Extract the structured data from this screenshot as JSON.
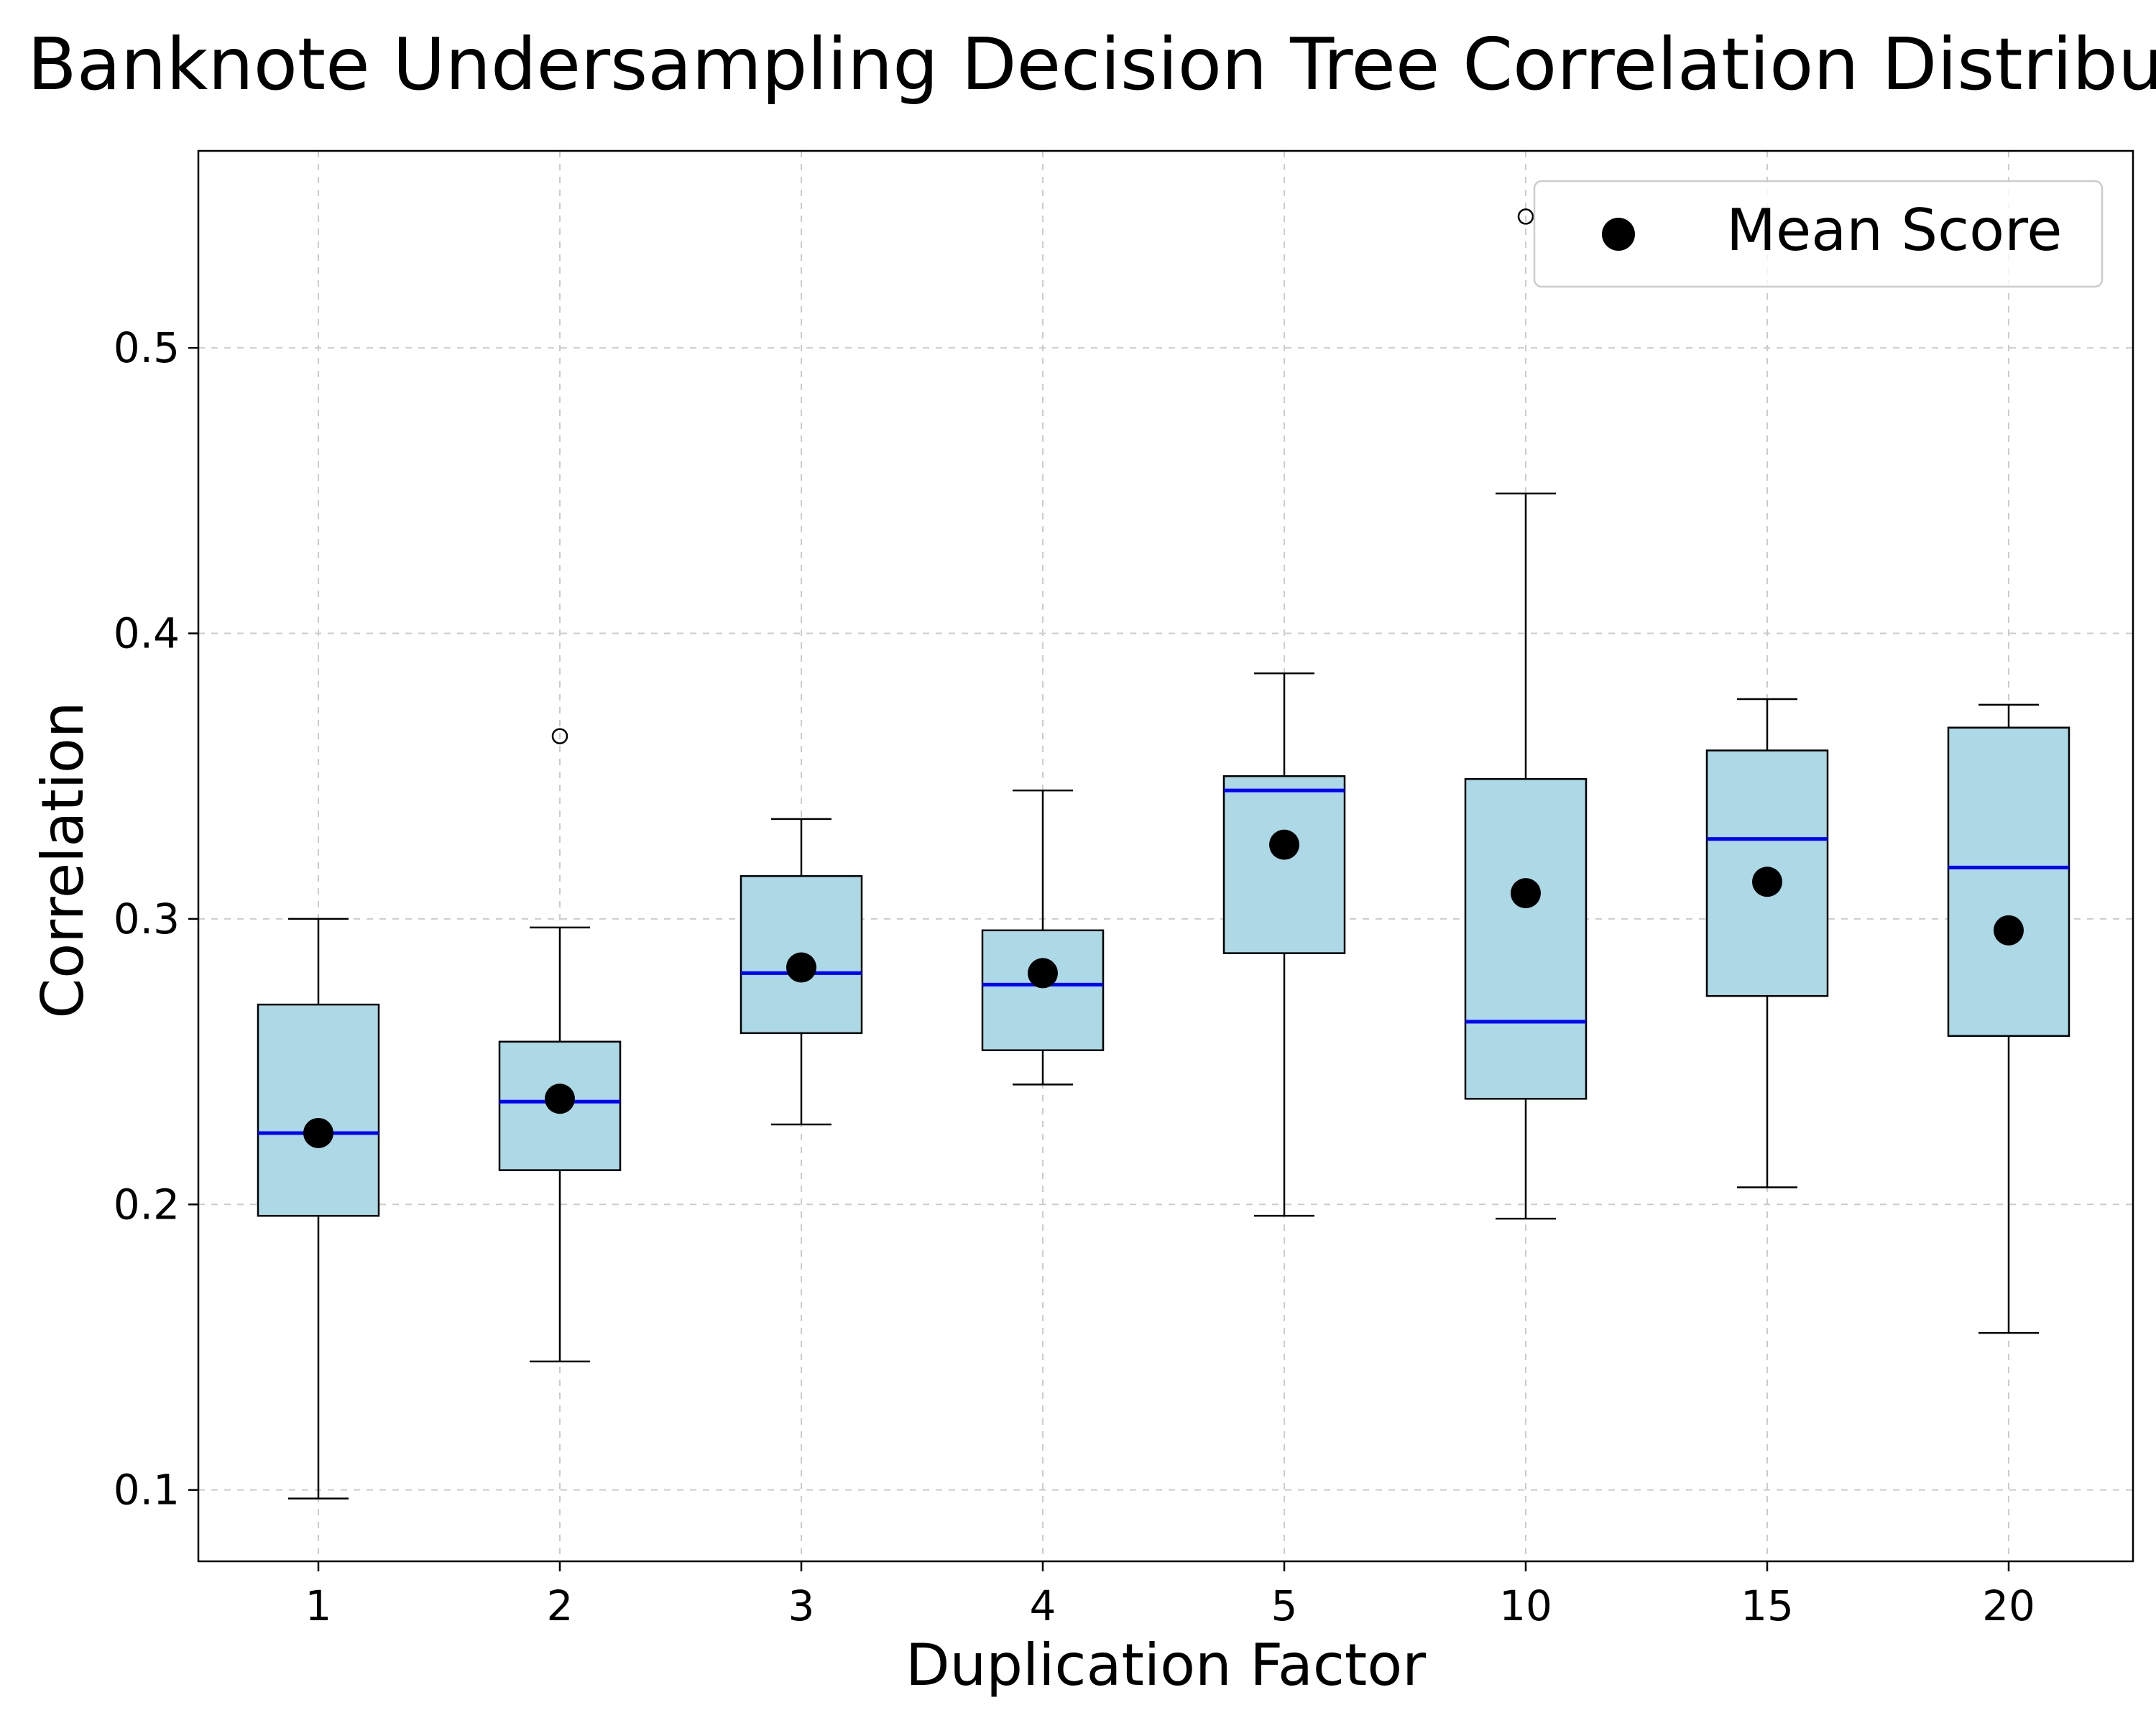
{
  "chart_data": {
    "type": "box",
    "title": "Banknote Undersampling Decision Tree Correlation Distribution",
    "xlabel": "Duplication Factor",
    "ylabel": "Correlation",
    "categories": [
      "1",
      "2",
      "3",
      "4",
      "5",
      "10",
      "15",
      "20"
    ],
    "ylim": [
      0.075,
      0.569
    ],
    "yticks": [
      0.1,
      0.2,
      0.3,
      0.4,
      0.5
    ],
    "grid": true,
    "legend": {
      "position": "top-right",
      "label": "Mean Score"
    },
    "colors": {
      "box_fill": "#add8e6",
      "median": "#0000ff",
      "mean": "#000000",
      "grid": "#cccccc"
    },
    "boxes": [
      {
        "category": "1",
        "whislo": 0.097,
        "q1": 0.196,
        "median": 0.225,
        "q3": 0.27,
        "whishi": 0.3,
        "mean": 0.225,
        "fliers": []
      },
      {
        "category": "2",
        "whislo": 0.145,
        "q1": 0.212,
        "median": 0.236,
        "q3": 0.257,
        "whishi": 0.297,
        "mean": 0.237,
        "fliers": [
          0.364
        ]
      },
      {
        "category": "3",
        "whislo": 0.228,
        "q1": 0.26,
        "median": 0.281,
        "q3": 0.315,
        "whishi": 0.335,
        "mean": 0.283,
        "fliers": []
      },
      {
        "category": "4",
        "whislo": 0.242,
        "q1": 0.254,
        "median": 0.277,
        "q3": 0.296,
        "whishi": 0.345,
        "mean": 0.281,
        "fliers": []
      },
      {
        "category": "5",
        "whislo": 0.196,
        "q1": 0.288,
        "median": 0.345,
        "q3": 0.35,
        "whishi": 0.386,
        "mean": 0.326,
        "fliers": []
      },
      {
        "category": "10",
        "whislo": 0.195,
        "q1": 0.237,
        "median": 0.264,
        "q3": 0.349,
        "whishi": 0.449,
        "mean": 0.309,
        "fliers": [
          0.546
        ]
      },
      {
        "category": "15",
        "whislo": 0.206,
        "q1": 0.273,
        "median": 0.328,
        "q3": 0.359,
        "whishi": 0.377,
        "mean": 0.313,
        "fliers": []
      },
      {
        "category": "20",
        "whislo": 0.155,
        "q1": 0.259,
        "median": 0.318,
        "q3": 0.367,
        "whishi": 0.375,
        "mean": 0.296,
        "fliers": []
      }
    ]
  }
}
